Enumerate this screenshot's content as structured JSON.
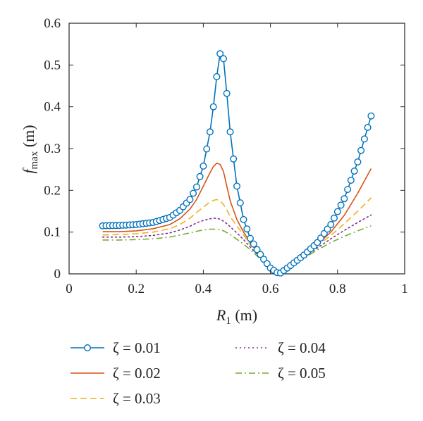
{
  "chart_data": {
    "type": "line",
    "title": "",
    "xlabel": {
      "main": "R",
      "sub": "1",
      "unit": " (m)"
    },
    "ylabel": {
      "main": "f",
      "sub": "max",
      "unit": " (m)"
    },
    "xlim": [
      0,
      1
    ],
    "ylim": [
      0,
      0.6
    ],
    "xticks": [
      0,
      0.2,
      0.4,
      0.6,
      0.8,
      1
    ],
    "xtick_labels": [
      "0",
      "0.2",
      "0.4",
      "0.6",
      "0.8",
      "1"
    ],
    "yticks": [
      0,
      0.1,
      0.2,
      0.3,
      0.4,
      0.5,
      0.6
    ],
    "ytick_labels": [
      "0",
      "0.1",
      "0.2",
      "0.3",
      "0.4",
      "0.5",
      "0.6"
    ],
    "grid": false,
    "legend_position": "below plot, two columns",
    "series": [
      {
        "name": "ζ = 0.01",
        "color": "#0072BD",
        "style": "solid-circle-markers",
        "peak": 0.527,
        "right_end": 0.378
      },
      {
        "name": "ζ = 0.02",
        "color": "#D95319",
        "style": "solid",
        "peak": 0.265,
        "right_end": 0.252
      },
      {
        "name": "ζ = 0.03",
        "color": "#EDB120",
        "style": "dashed",
        "peak": 0.178,
        "right_end": 0.182
      },
      {
        "name": "ζ = 0.04",
        "color": "#7E2F8E",
        "style": "dotted",
        "peak": 0.133,
        "right_end": 0.141
      },
      {
        "name": "ζ = 0.05",
        "color": "#77AC30",
        "style": "dash-dot",
        "peak": 0.107,
        "right_end": 0.115
      }
    ],
    "x": [
      0.1,
      0.15,
      0.2,
      0.25,
      0.3,
      0.33,
      0.36,
      0.38,
      0.4,
      0.42,
      0.43,
      0.44,
      0.45,
      0.46,
      0.47,
      0.48,
      0.5,
      0.52,
      0.54,
      0.56,
      0.58,
      0.6,
      0.62,
      0.63,
      0.64,
      0.66,
      0.7,
      0.74,
      0.78,
      0.82,
      0.86,
      0.9
    ],
    "y": [
      [
        0.115,
        0.116,
        0.118,
        0.123,
        0.135,
        0.152,
        0.178,
        0.208,
        0.258,
        0.34,
        0.4,
        0.472,
        0.527,
        0.515,
        0.432,
        0.34,
        0.21,
        0.13,
        0.085,
        0.058,
        0.035,
        0.014,
        0.003,
        0.002,
        0.008,
        0.02,
        0.045,
        0.075,
        0.118,
        0.18,
        0.268,
        0.378
      ],
      [
        0.101,
        0.101,
        0.103,
        0.108,
        0.118,
        0.132,
        0.155,
        0.178,
        0.21,
        0.242,
        0.257,
        0.265,
        0.262,
        0.245,
        0.21,
        0.175,
        0.13,
        0.1,
        0.075,
        0.053,
        0.032,
        0.014,
        0.004,
        0.003,
        0.008,
        0.02,
        0.044,
        0.071,
        0.1,
        0.14,
        0.193,
        0.252
      ],
      [
        0.093,
        0.094,
        0.096,
        0.1,
        0.108,
        0.118,
        0.133,
        0.147,
        0.16,
        0.172,
        0.176,
        0.178,
        0.175,
        0.166,
        0.153,
        0.137,
        0.115,
        0.093,
        0.07,
        0.05,
        0.031,
        0.014,
        0.004,
        0.003,
        0.008,
        0.019,
        0.042,
        0.067,
        0.092,
        0.12,
        0.15,
        0.182
      ],
      [
        0.088,
        0.088,
        0.089,
        0.092,
        0.098,
        0.105,
        0.114,
        0.122,
        0.128,
        0.132,
        0.133,
        0.133,
        0.131,
        0.126,
        0.12,
        0.113,
        0.098,
        0.082,
        0.064,
        0.047,
        0.03,
        0.014,
        0.004,
        0.003,
        0.008,
        0.019,
        0.04,
        0.062,
        0.084,
        0.104,
        0.123,
        0.141
      ],
      [
        0.081,
        0.081,
        0.082,
        0.084,
        0.088,
        0.093,
        0.098,
        0.102,
        0.105,
        0.107,
        0.107,
        0.107,
        0.106,
        0.103,
        0.099,
        0.094,
        0.083,
        0.071,
        0.058,
        0.043,
        0.028,
        0.013,
        0.004,
        0.003,
        0.008,
        0.018,
        0.038,
        0.057,
        0.075,
        0.09,
        0.103,
        0.115
      ]
    ]
  }
}
